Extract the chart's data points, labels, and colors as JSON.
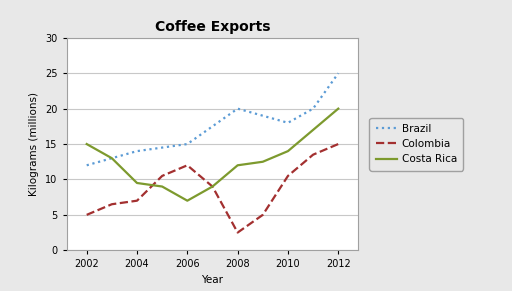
{
  "title": "Coffee Exports",
  "xlabel": "Year",
  "ylabel": "Kilograms (millions)",
  "years": [
    2002,
    2003,
    2004,
    2005,
    2006,
    2007,
    2008,
    2009,
    2010,
    2011,
    2012
  ],
  "brazil": [
    12,
    13,
    14,
    14.5,
    15,
    17.5,
    20,
    19,
    18,
    20,
    25
  ],
  "colombia": [
    5,
    6.5,
    7,
    10.5,
    12,
    9,
    2.5,
    5,
    10.5,
    13.5,
    15
  ],
  "costa_rica": [
    15,
    13,
    9.5,
    9,
    7,
    9,
    12,
    12.5,
    14,
    17,
    20
  ],
  "brazil_color": "#5B9BD5",
  "colombia_color": "#A33030",
  "costa_rica_color": "#7D9A2E",
  "ylim": [
    0,
    30
  ],
  "yticks": [
    0,
    5,
    10,
    15,
    20,
    25,
    30
  ],
  "xticks": [
    2002,
    2004,
    2006,
    2008,
    2010,
    2012
  ],
  "legend_labels": [
    "Brazil",
    "Colombia",
    "Costa Rica"
  ],
  "fig_background": "#E8E8E8",
  "plot_background": "#FFFFFF",
  "grid_color": "#C8C8C8",
  "title_fontsize": 10,
  "axis_label_fontsize": 7.5,
  "tick_fontsize": 7,
  "legend_fontsize": 7.5
}
